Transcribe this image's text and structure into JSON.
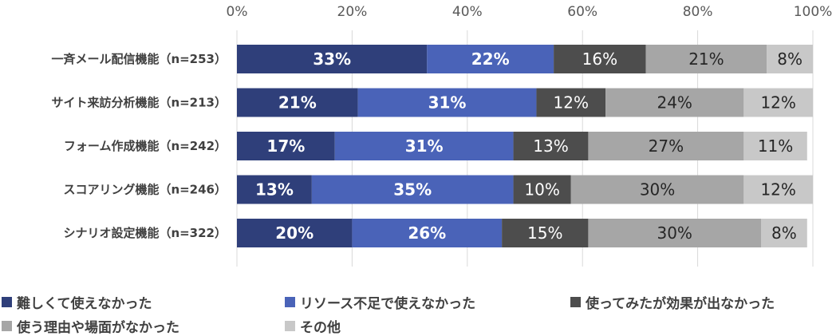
{
  "chart_data": {
    "type": "bar",
    "orientation": "horizontal",
    "stacked": true,
    "categories": [
      "一斉メール配信機能（n=253）",
      "サイト来訪分析機能（n=213）",
      "フォーム作成機能（n=242）",
      "スコアリング機能（n=246）",
      "シナリオ設定機能（n=322）"
    ],
    "series": [
      {
        "name": "難しくて使えなかった",
        "values": [
          33,
          21,
          17,
          13,
          20
        ],
        "labels": [
          "33%",
          "21%",
          "17%",
          "13%",
          "20%"
        ],
        "color": "#2f3f7a"
      },
      {
        "name": "リソース不足で使えなかった",
        "values": [
          22,
          31,
          31,
          35,
          26
        ],
        "labels": [
          "22%",
          "31%",
          "31%",
          "35%",
          "26%"
        ],
        "color": "#4a63b8"
      },
      {
        "name": "使ってみたが効果が出なかった",
        "values": [
          16,
          12,
          13,
          10,
          15
        ],
        "labels": [
          "16%",
          "12%",
          "13%",
          "10%",
          "15%"
        ],
        "color": "#4d4d4d"
      },
      {
        "name": "使う理由や場面がなかった",
        "values": [
          21,
          24,
          27,
          30,
          30
        ],
        "labels": [
          "21%",
          "24%",
          "27%",
          "30%",
          "30%"
        ],
        "color": "#a6a6a6"
      },
      {
        "name": "その他",
        "values": [
          8,
          12,
          11,
          12,
          8
        ],
        "labels": [
          "8%",
          "12%",
          "11%",
          "12%",
          "8%"
        ],
        "color": "#c8c8c8"
      }
    ],
    "xlim": [
      0,
      100
    ],
    "xticks": [
      0,
      20,
      40,
      60,
      80,
      100
    ],
    "xtick_labels": [
      "0%",
      "20%",
      "40%",
      "60%",
      "80%",
      "100%"
    ],
    "grid": true,
    "legend_position": "bottom"
  }
}
